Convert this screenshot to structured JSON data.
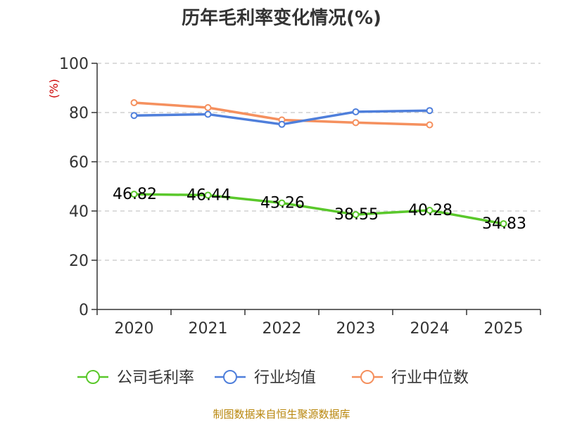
{
  "chart_data": {
    "type": "line",
    "title": "历年毛利率变化情况(%)",
    "ylabel": "(%)",
    "xlabel": "",
    "categories": [
      "2020",
      "2021",
      "2022",
      "2023",
      "2024",
      "2025"
    ],
    "ylim": [
      0,
      100
    ],
    "yticks": [
      0,
      20,
      40,
      60,
      80,
      100
    ],
    "grid": "horizontal dashed",
    "legend_position": "bottom",
    "series": [
      {
        "name": "公司毛利率",
        "color": "#5ac82b",
        "values": [
          46.82,
          46.44,
          43.26,
          38.55,
          40.28,
          34.83
        ],
        "labels": [
          "46.82",
          "46.44",
          "43.26",
          "38.55",
          "40.28",
          "34.83"
        ]
      },
      {
        "name": "行业均值",
        "color": "#4f7fdb",
        "values": [
          78.8,
          79.3,
          75.2,
          80.3,
          80.8,
          null
        ]
      },
      {
        "name": "行业中位数",
        "color": "#f5905e",
        "values": [
          84.0,
          82.0,
          77.0,
          75.9,
          75.0,
          null
        ]
      }
    ]
  },
  "source": "制图数据来自恒生聚源数据库"
}
